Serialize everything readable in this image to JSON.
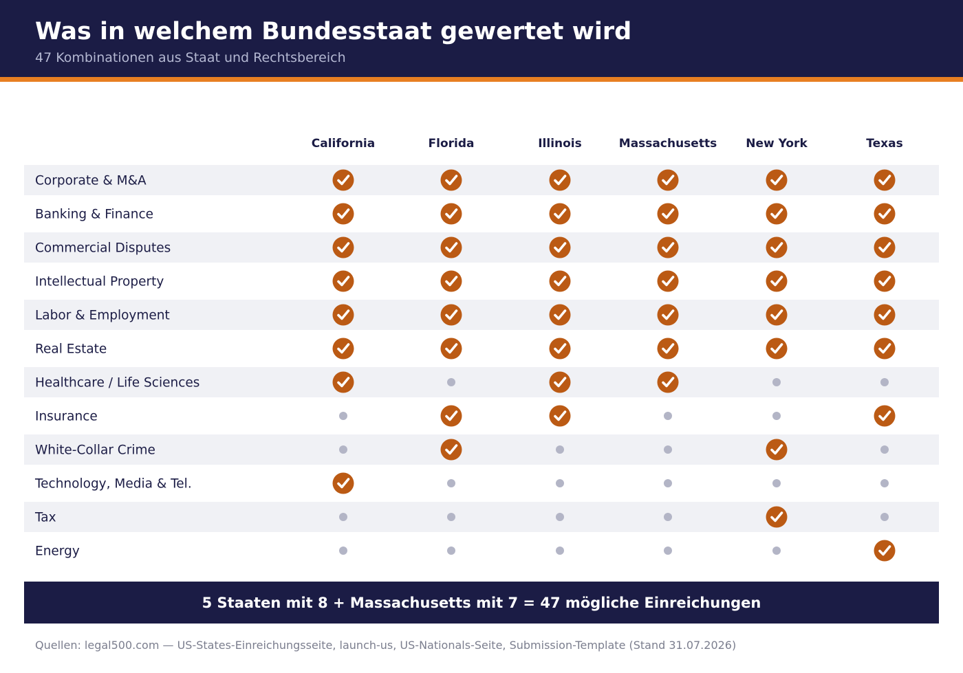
{
  "header": {
    "title": "Was in welchem Bundesstaat gewertet wird",
    "subtitle": "47 Kombinationen aus Staat und Rechtsbereich"
  },
  "colors": {
    "header_bg": "#1b1c45",
    "accent": "#e87f22",
    "check": "#bb5a14",
    "dot": "#b3b5c6",
    "row_alt": "#f0f1f5",
    "text": "#1b1c45"
  },
  "chart_data": {
    "type": "table",
    "columns": [
      "California",
      "Florida",
      "Illinois",
      "Massachusetts",
      "New York",
      "Texas"
    ],
    "rows": [
      {
        "label": "Corporate & M&A",
        "values": [
          true,
          true,
          true,
          true,
          true,
          true
        ]
      },
      {
        "label": "Banking & Finance",
        "values": [
          true,
          true,
          true,
          true,
          true,
          true
        ]
      },
      {
        "label": "Commercial Disputes",
        "values": [
          true,
          true,
          true,
          true,
          true,
          true
        ]
      },
      {
        "label": "Intellectual Property",
        "values": [
          true,
          true,
          true,
          true,
          true,
          true
        ]
      },
      {
        "label": "Labor & Employment",
        "values": [
          true,
          true,
          true,
          true,
          true,
          true
        ]
      },
      {
        "label": "Real Estate",
        "values": [
          true,
          true,
          true,
          true,
          true,
          true
        ]
      },
      {
        "label": "Healthcare / Life Sciences",
        "values": [
          true,
          false,
          true,
          true,
          false,
          false
        ]
      },
      {
        "label": "Insurance",
        "values": [
          false,
          true,
          true,
          false,
          false,
          true
        ]
      },
      {
        "label": "White-Collar Crime",
        "values": [
          false,
          true,
          false,
          false,
          true,
          false
        ]
      },
      {
        "label": "Technology, Media & Tel.",
        "values": [
          true,
          false,
          false,
          false,
          false,
          false
        ]
      },
      {
        "label": "Tax",
        "values": [
          false,
          false,
          false,
          false,
          true,
          false
        ]
      },
      {
        "label": "Energy",
        "values": [
          false,
          false,
          false,
          false,
          false,
          true
        ]
      }
    ]
  },
  "summary": {
    "text": "5 Staaten mit 8 + Massachusetts mit 7 = 47 mögliche Einreichungen"
  },
  "footnote": {
    "text": "Quellen: legal500.com — US-States-Einreichungsseite, launch-us, US-Nationals-Seite, Submission-Template (Stand 31.07.2026)"
  }
}
